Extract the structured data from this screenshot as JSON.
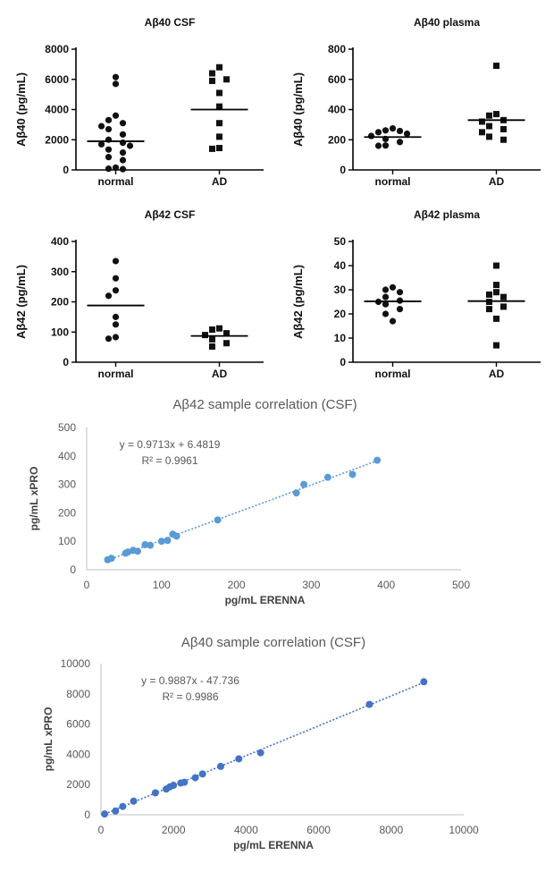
{
  "chart_data": [
    {
      "type": "scatter",
      "style": "dot-plot",
      "title": "Aβ40 CSF",
      "ylabel": "Aβ40 (pg/mL)",
      "ylim": [
        0,
        8000
      ],
      "yticks": [
        "0",
        "2000",
        "4000",
        "6000",
        "8000"
      ],
      "categories": [
        "normal",
        "AD"
      ],
      "series": [
        {
          "category": "normal",
          "marker": "circle",
          "median": 1900,
          "values": [
            6150,
            5700,
            3600,
            3300,
            3100,
            2900,
            2700,
            2350,
            2000,
            1800,
            1700,
            1600,
            1350,
            1150,
            850,
            650,
            150,
            80,
            50
          ]
        },
        {
          "category": "AD",
          "marker": "square",
          "median": 4000,
          "values": [
            6800,
            6400,
            6000,
            5900,
            5100,
            4200,
            3100,
            2200,
            1450,
            1400
          ]
        }
      ]
    },
    {
      "type": "scatter",
      "style": "dot-plot",
      "title": "Aβ40 plasma",
      "ylabel": "Aβ40 (pg/mL)",
      "ylim": [
        0,
        800
      ],
      "yticks": [
        "0",
        "200",
        "400",
        "600",
        "800"
      ],
      "categories": [
        "normal",
        "AD"
      ],
      "series": [
        {
          "category": "normal",
          "marker": "circle",
          "median": 218,
          "values": [
            275,
            262,
            258,
            250,
            240,
            225,
            205,
            185,
            162,
            160
          ]
        },
        {
          "category": "AD",
          "marker": "square",
          "median": 330,
          "values": [
            690,
            370,
            360,
            330,
            320,
            290,
            270,
            250,
            220,
            200
          ]
        }
      ]
    },
    {
      "type": "scatter",
      "style": "dot-plot",
      "title": "Aβ42 CSF",
      "ylabel": "Aβ42 (pg/mL)",
      "ylim": [
        0,
        400
      ],
      "yticks": [
        "0",
        "100",
        "200",
        "300",
        "400"
      ],
      "categories": [
        "normal",
        "AD"
      ],
      "series": [
        {
          "category": "normal",
          "marker": "circle",
          "median": 188,
          "values": [
            335,
            278,
            238,
            220,
            150,
            125,
            83,
            78
          ]
        },
        {
          "category": "AD",
          "marker": "square",
          "median": 87,
          "values": [
            112,
            108,
            96,
            90,
            76,
            63,
            52
          ]
        }
      ]
    },
    {
      "type": "scatter",
      "style": "dot-plot",
      "title": "Aβ42 plasma",
      "ylabel": "Aβ42 (pg/mL)",
      "ylim": [
        0,
        50
      ],
      "yticks": [
        "0",
        "10",
        "20",
        "30",
        "40",
        "50"
      ],
      "categories": [
        "normal",
        "AD"
      ],
      "series": [
        {
          "category": "normal",
          "marker": "circle",
          "median": 25.2,
          "values": [
            31,
            30,
            29,
            27,
            25.5,
            25,
            24,
            22,
            20,
            17
          ]
        },
        {
          "category": "AD",
          "marker": "square",
          "median": 25.3,
          "values": [
            40,
            32,
            29,
            28,
            27,
            25,
            23,
            22,
            18,
            7
          ]
        }
      ]
    },
    {
      "type": "scatter",
      "title": "Aβ42 sample correlation (CSF)",
      "xlabel": "pg/mL ERENNA",
      "ylabel": "pg/mL xPRO",
      "xlim": [
        0,
        500
      ],
      "ylim": [
        0,
        500
      ],
      "xticks": [
        "0",
        "100",
        "200",
        "300",
        "400",
        "500"
      ],
      "yticks": [
        "0",
        "100",
        "200",
        "300",
        "400",
        "500"
      ],
      "equation": "y = 0.9713x + 6.4819",
      "r2": "R² = 0.9961",
      "trendline": {
        "slope": 0.9713,
        "intercept": 6.4819
      },
      "color": "#5b9bd5",
      "points": [
        [
          28,
          35
        ],
        [
          33,
          40
        ],
        [
          52,
          58
        ],
        [
          55,
          62
        ],
        [
          62,
          68
        ],
        [
          68,
          65
        ],
        [
          78,
          88
        ],
        [
          85,
          86
        ],
        [
          100,
          100
        ],
        [
          108,
          103
        ],
        [
          115,
          125
        ],
        [
          120,
          118
        ],
        [
          175,
          175
        ],
        [
          280,
          270
        ],
        [
          290,
          300
        ],
        [
          322,
          325
        ],
        [
          355,
          335
        ],
        [
          388,
          385
        ]
      ]
    },
    {
      "type": "scatter",
      "title": "Aβ40 sample correlation (CSF)",
      "xlabel": "pg/mL ERENNA",
      "ylabel": "pg/mL xPRO",
      "xlim": [
        0,
        10000
      ],
      "ylim": [
        0,
        10000
      ],
      "xticks": [
        "0",
        "2000",
        "4000",
        "6000",
        "8000",
        "10000"
      ],
      "yticks": [
        "0",
        "2000",
        "4000",
        "6000",
        "8000",
        "10000"
      ],
      "equation": "y = 0.9887x - 47.736",
      "r2": "R² = 0.9986",
      "trendline": {
        "slope": 0.9887,
        "intercept": -47.736
      },
      "color": "#4472c4",
      "points": [
        [
          100,
          50
        ],
        [
          400,
          250
        ],
        [
          600,
          550
        ],
        [
          900,
          900
        ],
        [
          1500,
          1450
        ],
        [
          1800,
          1700
        ],
        [
          1900,
          1850
        ],
        [
          2000,
          1950
        ],
        [
          2200,
          2100
        ],
        [
          2300,
          2150
        ],
        [
          2600,
          2450
        ],
        [
          2800,
          2700
        ],
        [
          3300,
          3200
        ],
        [
          3800,
          3700
        ],
        [
          4400,
          4100
        ],
        [
          7400,
          7300
        ],
        [
          8900,
          8800
        ]
      ]
    }
  ]
}
